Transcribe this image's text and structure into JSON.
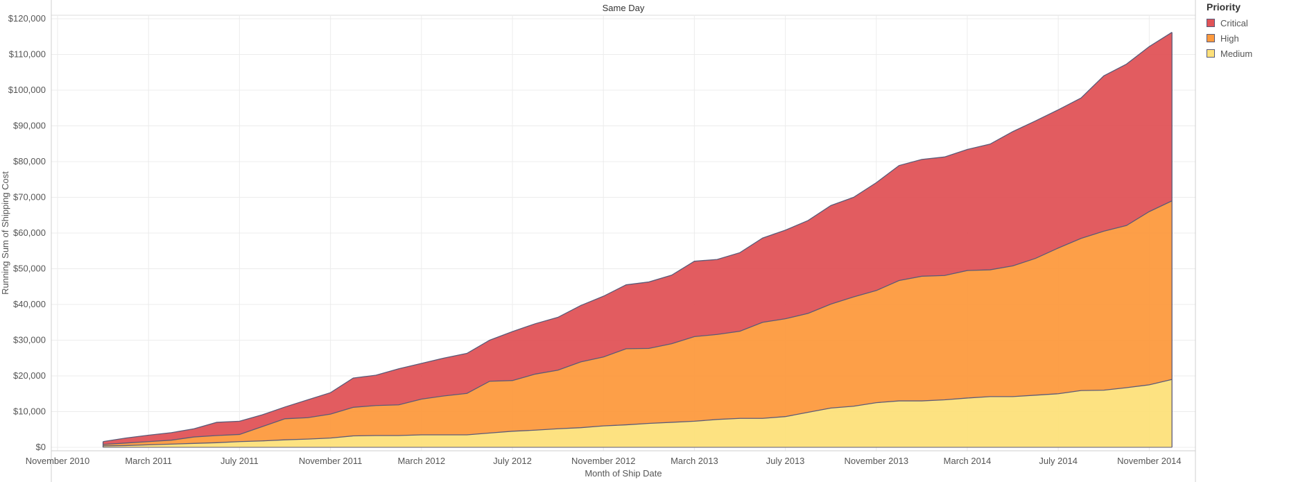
{
  "chart_data": {
    "type": "area",
    "stacked": true,
    "panel_title": "Same Day",
    "xlabel": "Month of Ship Date",
    "ylabel": "Running Sum of Shipping Cost",
    "x_tick_labels": [
      "November 2010",
      "March 2011",
      "July 2011",
      "November 2011",
      "March 2012",
      "July 2012",
      "November 2012",
      "March 2013",
      "July 2013",
      "November 2013",
      "March 2014",
      "July 2014",
      "November 2014"
    ],
    "y_tick_labels": [
      "$0",
      "$10,000",
      "$20,000",
      "$30,000",
      "$40,000",
      "$50,000",
      "$60,000",
      "$70,000",
      "$80,000",
      "$90,000",
      "$100,000",
      "$110,000",
      "$120,000"
    ],
    "ylim": [
      0,
      120000
    ],
    "grid": true,
    "x": [
      "2011-01",
      "2011-02",
      "2011-03",
      "2011-04",
      "2011-05",
      "2011-06",
      "2011-07",
      "2011-08",
      "2011-09",
      "2011-10",
      "2011-11",
      "2011-12",
      "2012-01",
      "2012-02",
      "2012-03",
      "2012-04",
      "2012-05",
      "2012-06",
      "2012-07",
      "2012-08",
      "2012-09",
      "2012-10",
      "2012-11",
      "2012-12",
      "2013-01",
      "2013-02",
      "2013-03",
      "2013-04",
      "2013-05",
      "2013-06",
      "2013-07",
      "2013-08",
      "2013-09",
      "2013-10",
      "2013-11",
      "2013-12",
      "2014-01",
      "2014-02",
      "2014-03",
      "2014-04",
      "2014-05",
      "2014-06",
      "2014-07",
      "2014-08",
      "2014-09",
      "2014-10",
      "2014-11",
      "2014-12"
    ],
    "series": [
      {
        "name": "Medium",
        "color": "#fde07a",
        "values": [
          400,
          500,
          700,
          900,
          1100,
          1300,
          1600,
          1800,
          2100,
          2300,
          2600,
          3200,
          3300,
          3300,
          3500,
          3500,
          3500,
          4000,
          4500,
          4800,
          5200,
          5500,
          6000,
          6300,
          6700,
          7000,
          7300,
          7800,
          8100,
          8100,
          8600,
          9800,
          11000,
          11500,
          12500,
          13000,
          13000,
          13300,
          13800,
          14200,
          14200,
          14600,
          15000,
          15900,
          16000,
          16700,
          17500,
          19000
        ]
      },
      {
        "name": "High",
        "color": "#fd9a3e",
        "values": [
          400,
          700,
          900,
          1100,
          1800,
          2000,
          2000,
          4000,
          5900,
          6000,
          6700,
          8000,
          8400,
          8600,
          10000,
          10900,
          11600,
          14500,
          14200,
          15700,
          16400,
          18400,
          19300,
          21300,
          21000,
          22000,
          23700,
          23800,
          24400,
          26900,
          27400,
          27700,
          29100,
          30600,
          31400,
          33700,
          34900,
          34800,
          35700,
          35500,
          36600,
          38300,
          40800,
          42600,
          44500,
          45400,
          48500,
          50000
        ]
      },
      {
        "name": "Critical",
        "color": "#e05357",
        "values": [
          800,
          1400,
          1800,
          2100,
          2300,
          3700,
          3700,
          3300,
          3300,
          5000,
          6000,
          8200,
          8500,
          10100,
          10000,
          10600,
          11200,
          11500,
          13700,
          14100,
          14800,
          15800,
          17000,
          17900,
          18600,
          19200,
          21100,
          21000,
          22000,
          23600,
          24800,
          26000,
          27600,
          27900,
          30200,
          32200,
          32700,
          33200,
          33900,
          35200,
          37600,
          38500,
          38700,
          39300,
          43500,
          45200,
          46200,
          47200
        ]
      }
    ]
  },
  "legend": {
    "title": "Priority",
    "items": [
      {
        "label": "Critical",
        "color": "#e05357"
      },
      {
        "label": "High",
        "color": "#fd9a3e"
      },
      {
        "label": "Medium",
        "color": "#fde07a"
      }
    ]
  }
}
